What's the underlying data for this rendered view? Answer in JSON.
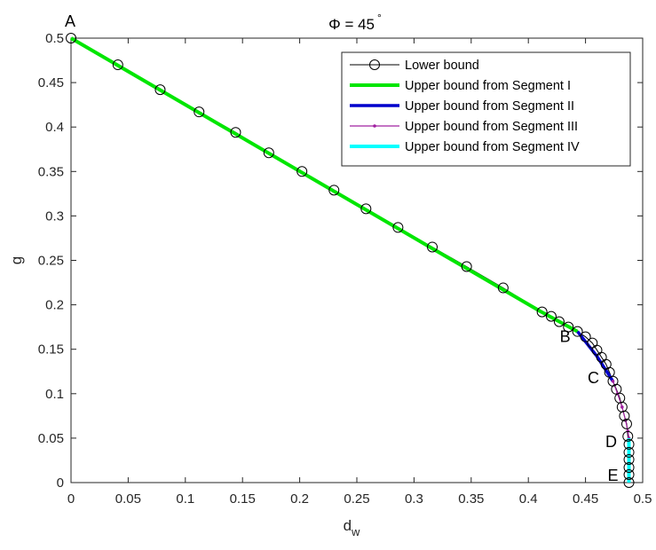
{
  "chart_data": {
    "type": "line",
    "title": "Φ = 45°",
    "title_parts": {
      "main": "Φ = 45",
      "superscript": "°"
    },
    "xlabel": {
      "base": "d",
      "subscript": "w"
    },
    "ylabel": "g",
    "xlim": [
      0,
      0.5
    ],
    "ylim": [
      0,
      0.5
    ],
    "xticks": [
      "0",
      "0.05",
      "0.1",
      "0.15",
      "0.2",
      "0.25",
      "0.3",
      "0.35",
      "0.4",
      "0.45",
      "0.5"
    ],
    "yticks": [
      "0",
      "0.05",
      "0.1",
      "0.15",
      "0.2",
      "0.25",
      "0.3",
      "0.35",
      "0.4",
      "0.45",
      "0.5"
    ],
    "grid": false,
    "legend_position": "top-right",
    "series": [
      {
        "name": "Lower bound",
        "color": "#000000",
        "marker": "circle",
        "x": [
          0,
          0.041,
          0.078,
          0.112,
          0.144,
          0.173,
          0.202,
          0.23,
          0.258,
          0.286,
          0.316,
          0.346,
          0.378,
          0.412,
          0.42,
          0.427,
          0.435,
          0.443,
          0.45,
          0.456,
          0.46,
          0.464,
          0.468,
          0.471,
          0.474,
          0.477,
          0.48,
          0.482,
          0.484,
          0.486,
          0.487,
          0.488,
          0.488,
          0.488,
          0.488,
          0.488,
          0.488
        ],
        "y": [
          0.5,
          0.47,
          0.442,
          0.417,
          0.394,
          0.371,
          0.35,
          0.329,
          0.308,
          0.287,
          0.265,
          0.243,
          0.219,
          0.192,
          0.187,
          0.181,
          0.175,
          0.17,
          0.164,
          0.157,
          0.149,
          0.141,
          0.133,
          0.124,
          0.114,
          0.105,
          0.095,
          0.085,
          0.075,
          0.066,
          0.052,
          0.043,
          0.034,
          0.026,
          0.017,
          0.009,
          0
        ]
      },
      {
        "name": "Upper bound from Segment I",
        "color": "#00e600",
        "x": [
          0,
          0.41,
          0.443
        ],
        "y": [
          0.5,
          0.193,
          0.17
        ]
      },
      {
        "name": "Upper bound from Segment II",
        "color": "#0000cc",
        "x": [
          0.443,
          0.46,
          0.474
        ],
        "y": [
          0.17,
          0.142,
          0.114
        ]
      },
      {
        "name": "Upper bound from Segment III",
        "color": "#a020a0",
        "marker": "dot",
        "x": [
          0.474,
          0.478,
          0.482,
          0.485,
          0.487,
          0.488
        ],
        "y": [
          0.114,
          0.1,
          0.085,
          0.07,
          0.058,
          0.05
        ]
      },
      {
        "name": "Upper bound from Segment IV",
        "color": "#00ffff",
        "x": [
          0.488,
          0.488
        ],
        "y": [
          0.05,
          0
        ]
      }
    ],
    "annotations": [
      {
        "text": "A",
        "x": 0,
        "y": 0.5
      },
      {
        "text": "B",
        "x": 0.443,
        "y": 0.17
      },
      {
        "text": "C",
        "x": 0.474,
        "y": 0.114
      },
      {
        "text": "D",
        "x": 0.488,
        "y": 0.05
      },
      {
        "text": "E",
        "x": 0.488,
        "y": 0.017
      }
    ]
  }
}
